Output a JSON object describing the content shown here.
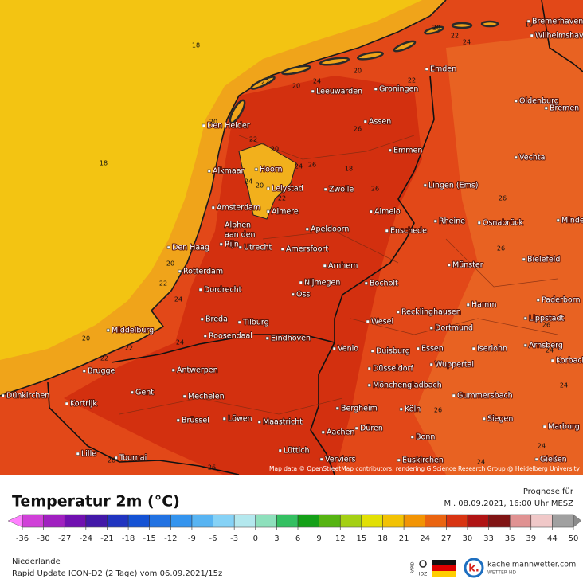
{
  "map": {
    "cities": [
      "Bremerhaven",
      "Wilhelmshaven",
      "Emden",
      "Leeuwarden",
      "Groningen",
      "Oldenburg",
      "Bremen",
      "Den Helder",
      "Assen",
      "Emmen",
      "Vechta",
      "Alkmaar",
      "Hoorn",
      "Zwolle",
      "Lingen (Ems)",
      "Lelystad",
      "Amsterdam",
      "Almere",
      "Almelo",
      "Rheine",
      "Osnabrück",
      "Minden",
      "Alphen",
      "aan den",
      "Rijn",
      "Apeldoorn",
      "Enschede",
      "Bielefeld",
      "Den Haag",
      "Utrecht",
      "Amersfoort",
      "Arnhem",
      "Münster",
      "Rotterdam",
      "Nijmegen",
      "Bocholt",
      "Dordrecht",
      "Oss",
      "Hamm",
      "Paderborn",
      "Recklinghausen",
      "Middelburg",
      "Breda",
      "Tilburg",
      "Wesel",
      "Lippstadt",
      "Dortmund",
      "Roosendaal",
      "Eindhoven",
      "Venlo",
      "Duisburg",
      "Essen",
      "Iserlohn",
      "Arnsberg",
      "Brugge",
      "Antwerpen",
      "Wuppertal",
      "Korbach",
      "Düsseldorf",
      "Dünkirchen",
      "Gent",
      "Mechelen",
      "Mönchengladbach",
      "Gummersbach",
      "Bergheim",
      "Köln",
      "Kortrijk",
      "Brüssel",
      "Löwen",
      "Maastricht",
      "Siegen",
      "Aachen",
      "Düren",
      "Marburg",
      "Bonn",
      "Lüttich",
      "Lille",
      "Tournai",
      "Verviers",
      "Euskirchen",
      "Gießen"
    ],
    "contour_labels": [
      18,
      18,
      20,
      16,
      22,
      24,
      20,
      22,
      24,
      20,
      22,
      20,
      20,
      22,
      20,
      26,
      24,
      26,
      18,
      24,
      20,
      26,
      26,
      22,
      20,
      22,
      24,
      26,
      22,
      22,
      24,
      28,
      26,
      24,
      24,
      24,
      24,
      26,
      26
    ],
    "attribution": "Map data © OpenStreetMap contributors, rendering GIScience Research Group @ Heidelberg University"
  },
  "legend": {
    "title": "Temperatur 2m (°C)",
    "forecast_label": "Prognose für",
    "forecast_time": "Mi. 08.09.2021, 16:00 Uhr MESZ",
    "colorbar": {
      "ticks": [
        -36,
        -30,
        -27,
        -24,
        -21,
        -18,
        -15,
        -12,
        -9,
        -6,
        -3,
        0,
        3,
        6,
        9,
        12,
        15,
        18,
        21,
        24,
        27,
        30,
        33,
        36,
        39,
        44,
        50
      ],
      "colors": [
        "#d040d8",
        "#a020c0",
        "#7010b0",
        "#4218a8",
        "#2034c0",
        "#1452d4",
        "#2272e2",
        "#3494ee",
        "#58b4f2",
        "#86d2f6",
        "#b4e8ee",
        "#8ee0bc",
        "#34c062",
        "#14a018",
        "#56b412",
        "#a4d014",
        "#e2e004",
        "#f2c204",
        "#f29404",
        "#ea6410",
        "#d83412",
        "#b01414",
        "#801414",
        "#e09292",
        "#f0c8c8",
        "#a0a0a0"
      ],
      "under_color": "#ff80ff",
      "over_color": "#8c8c8c"
    }
  },
  "footer": {
    "region": "Niederlande",
    "run": "Rapid Update ICON-D2 (2 Tage) vom 06.09.2021/15z",
    "logo_rapid": "RAPID",
    "logo_idz": "IDZ",
    "logo_k": "k.",
    "brand": "kachelmannwetter.com",
    "brand_sub": "WETTER HD"
  }
}
